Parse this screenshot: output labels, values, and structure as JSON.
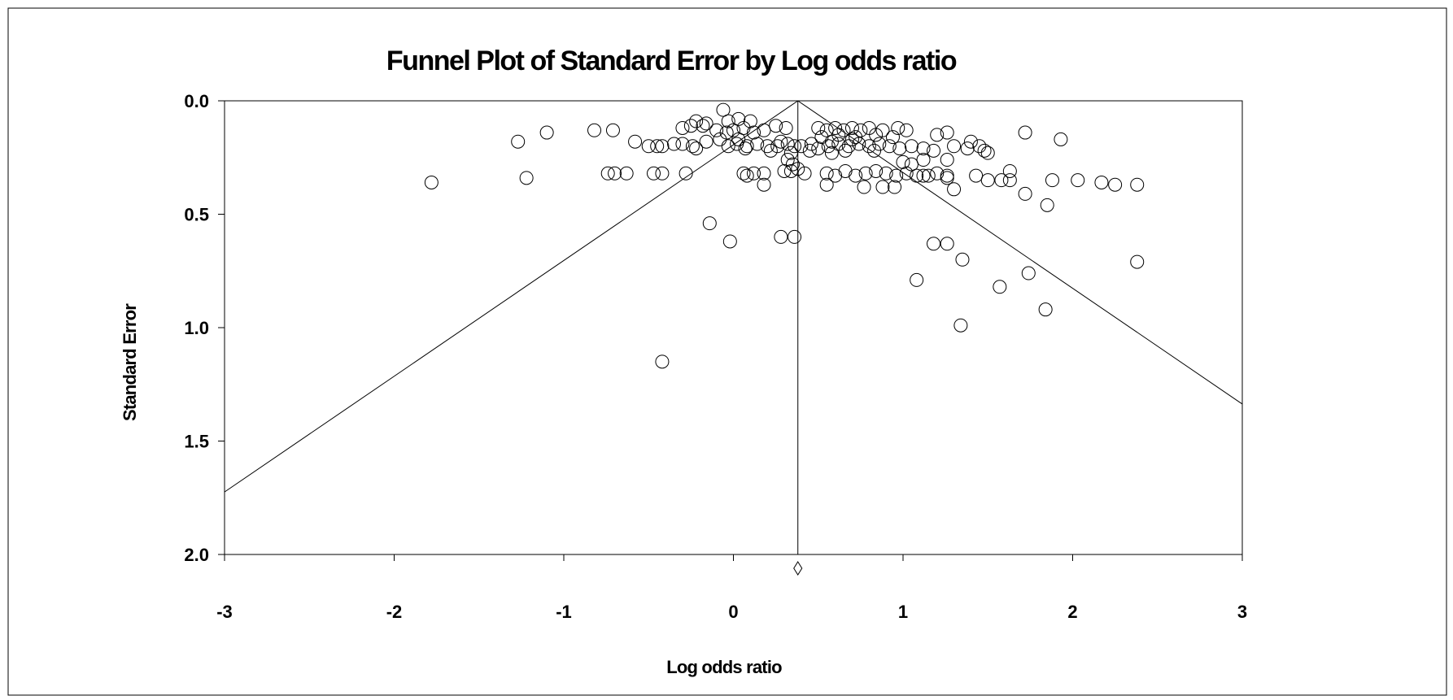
{
  "chart_data": {
    "type": "scatter",
    "title": "Funnel Plot of Standard Error by Log odds ratio",
    "xlabel": "Log odds ratio",
    "ylabel": "Standard Error",
    "xlim": [
      -3,
      3
    ],
    "ylim": [
      0,
      2
    ],
    "y_inverted": true,
    "x_ticks": [
      "-3",
      "-2",
      "-1",
      "0",
      "1",
      "2",
      "3"
    ],
    "y_ticks": [
      "0.0",
      "0.5",
      "1.0",
      "1.5",
      "2.0"
    ],
    "grid": false,
    "legend": "none",
    "funnel": {
      "center": 0.38,
      "z": 1.96
    },
    "summary_marker": {
      "x": 0.38,
      "symbol": "diamond"
    },
    "points": [
      [
        -0.06,
        0.04
      ],
      [
        -0.03,
        0.09
      ],
      [
        0.03,
        0.08
      ],
      [
        0.1,
        0.09
      ],
      [
        -0.16,
        0.1
      ],
      [
        -0.22,
        0.09
      ],
      [
        -0.3,
        0.12
      ],
      [
        -0.25,
        0.11
      ],
      [
        -0.18,
        0.11
      ],
      [
        -0.1,
        0.13
      ],
      [
        -0.04,
        0.14
      ],
      [
        0.0,
        0.13
      ],
      [
        0.06,
        0.12
      ],
      [
        0.12,
        0.14
      ],
      [
        0.18,
        0.13
      ],
      [
        0.25,
        0.11
      ],
      [
        0.31,
        0.12
      ],
      [
        -0.82,
        0.13
      ],
      [
        -0.71,
        0.13
      ],
      [
        -1.1,
        0.14
      ],
      [
        -1.27,
        0.18
      ],
      [
        -0.58,
        0.18
      ],
      [
        -0.5,
        0.2
      ],
      [
        -0.45,
        0.2
      ],
      [
        -0.42,
        0.2
      ],
      [
        -0.35,
        0.19
      ],
      [
        -0.3,
        0.19
      ],
      [
        -0.24,
        0.2
      ],
      [
        -0.16,
        0.18
      ],
      [
        -0.08,
        0.17
      ],
      [
        -0.03,
        0.2
      ],
      [
        0.02,
        0.19
      ],
      [
        0.08,
        0.2
      ],
      [
        0.14,
        0.19
      ],
      [
        0.2,
        0.2
      ],
      [
        0.26,
        0.2
      ],
      [
        0.32,
        0.19
      ],
      [
        0.4,
        0.2
      ],
      [
        0.46,
        0.19
      ],
      [
        0.5,
        0.21
      ],
      [
        0.56,
        0.2
      ],
      [
        0.62,
        0.19
      ],
      [
        0.68,
        0.2
      ],
      [
        0.74,
        0.19
      ],
      [
        0.8,
        0.2
      ],
      [
        0.86,
        0.19
      ],
      [
        0.92,
        0.2
      ],
      [
        0.98,
        0.21
      ],
      [
        1.05,
        0.2
      ],
      [
        1.12,
        0.21
      ],
      [
        0.07,
        0.21
      ],
      [
        0.22,
        0.22
      ],
      [
        0.34,
        0.23
      ],
      [
        0.45,
        0.22
      ],
      [
        0.58,
        0.23
      ],
      [
        0.66,
        0.22
      ],
      [
        0.83,
        0.22
      ],
      [
        -0.22,
        0.21
      ],
      [
        0.03,
        0.17
      ],
      [
        0.28,
        0.18
      ],
      [
        0.36,
        0.2
      ],
      [
        0.5,
        0.12
      ],
      [
        0.55,
        0.13
      ],
      [
        0.6,
        0.12
      ],
      [
        0.65,
        0.13
      ],
      [
        0.7,
        0.12
      ],
      [
        0.75,
        0.13
      ],
      [
        0.8,
        0.12
      ],
      [
        0.88,
        0.13
      ],
      [
        0.97,
        0.12
      ],
      [
        1.02,
        0.13
      ],
      [
        0.52,
        0.16
      ],
      [
        0.62,
        0.15
      ],
      [
        0.72,
        0.16
      ],
      [
        0.84,
        0.15
      ],
      [
        0.94,
        0.16
      ],
      [
        0.58,
        0.18
      ],
      [
        0.7,
        0.17
      ],
      [
        1.2,
        0.15
      ],
      [
        1.26,
        0.14
      ],
      [
        1.3,
        0.2
      ],
      [
        1.38,
        0.21
      ],
      [
        1.4,
        0.18
      ],
      [
        1.45,
        0.2
      ],
      [
        1.48,
        0.22
      ],
      [
        1.5,
        0.23
      ],
      [
        1.72,
        0.14
      ],
      [
        1.93,
        0.17
      ],
      [
        1.18,
        0.22
      ],
      [
        1.26,
        0.26
      ],
      [
        1.12,
        0.26
      ],
      [
        1.05,
        0.28
      ],
      [
        1.0,
        0.27
      ],
      [
        0.32,
        0.26
      ],
      [
        0.35,
        0.28
      ],
      [
        0.38,
        0.3
      ],
      [
        0.3,
        0.31
      ],
      [
        0.34,
        0.31
      ],
      [
        0.42,
        0.32
      ],
      [
        0.55,
        0.32
      ],
      [
        0.6,
        0.33
      ],
      [
        0.66,
        0.31
      ],
      [
        0.72,
        0.33
      ],
      [
        0.78,
        0.32
      ],
      [
        0.84,
        0.31
      ],
      [
        0.9,
        0.32
      ],
      [
        0.96,
        0.33
      ],
      [
        1.02,
        0.32
      ],
      [
        1.08,
        0.33
      ],
      [
        1.15,
        0.33
      ],
      [
        1.2,
        0.32
      ],
      [
        1.26,
        0.33
      ],
      [
        1.26,
        0.34
      ],
      [
        1.12,
        0.33
      ],
      [
        0.06,
        0.32
      ],
      [
        0.12,
        0.32
      ],
      [
        0.18,
        0.32
      ],
      [
        0.08,
        0.33
      ],
      [
        -0.28,
        0.32
      ],
      [
        -0.42,
        0.32
      ],
      [
        -0.47,
        0.32
      ],
      [
        -0.63,
        0.32
      ],
      [
        -0.7,
        0.32
      ],
      [
        -0.74,
        0.32
      ],
      [
        -1.22,
        0.34
      ],
      [
        -1.78,
        0.36
      ],
      [
        0.18,
        0.37
      ],
      [
        0.55,
        0.37
      ],
      [
        0.77,
        0.38
      ],
      [
        0.88,
        0.38
      ],
      [
        0.95,
        0.38
      ],
      [
        1.3,
        0.39
      ],
      [
        1.43,
        0.33
      ],
      [
        1.5,
        0.35
      ],
      [
        1.58,
        0.35
      ],
      [
        1.63,
        0.35
      ],
      [
        1.63,
        0.31
      ],
      [
        1.72,
        0.41
      ],
      [
        1.88,
        0.35
      ],
      [
        2.03,
        0.35
      ],
      [
        2.17,
        0.36
      ],
      [
        2.25,
        0.37
      ],
      [
        2.38,
        0.37
      ],
      [
        1.85,
        0.46
      ],
      [
        -0.14,
        0.54
      ],
      [
        -0.02,
        0.62
      ],
      [
        0.28,
        0.6
      ],
      [
        0.36,
        0.6
      ],
      [
        1.18,
        0.63
      ],
      [
        1.26,
        0.63
      ],
      [
        1.35,
        0.7
      ],
      [
        2.38,
        0.71
      ],
      [
        1.74,
        0.76
      ],
      [
        1.08,
        0.79
      ],
      [
        1.57,
        0.82
      ],
      [
        1.84,
        0.92
      ],
      [
        1.34,
        0.99
      ],
      [
        -0.42,
        1.15
      ]
    ]
  }
}
